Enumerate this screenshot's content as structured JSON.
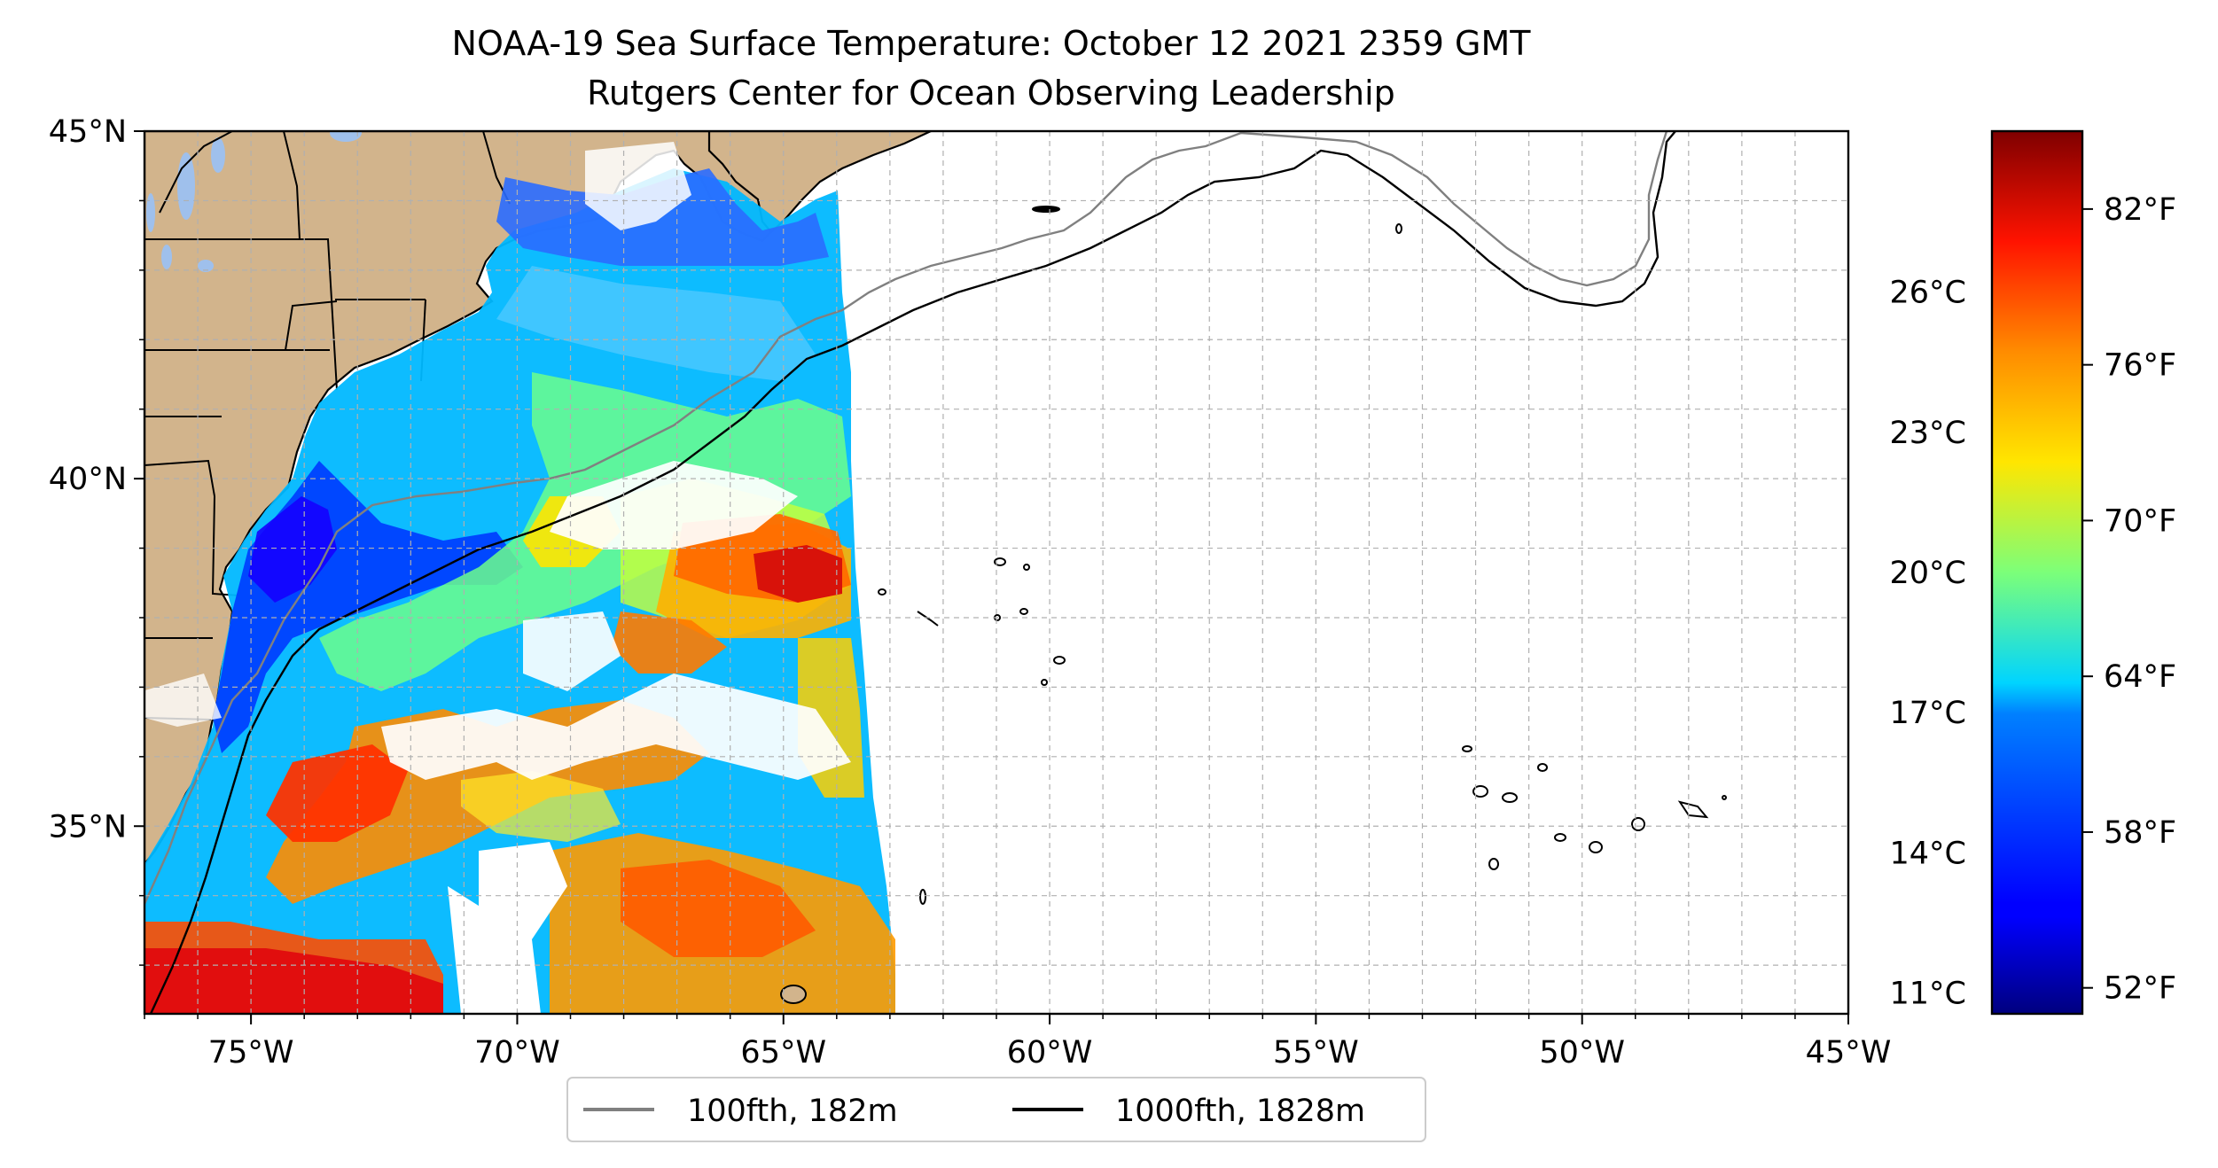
{
  "title": {
    "line1": "NOAA-19 Sea Surface Temperature: October 12 2021 2359 GMT",
    "line2": "Rutgers Center for Ocean Observing Leadership"
  },
  "map": {
    "lon_range": [
      -77,
      -45
    ],
    "lat_range": [
      32.3,
      45
    ],
    "x_ticks": [
      {
        "lon": -75,
        "label": "75°W"
      },
      {
        "lon": -70,
        "label": "70°W"
      },
      {
        "lon": -65,
        "label": "65°W"
      },
      {
        "lon": -60,
        "label": "60°W"
      },
      {
        "lon": -55,
        "label": "55°W"
      },
      {
        "lon": -50,
        "label": "50°W"
      },
      {
        "lon": -45,
        "label": "45°W"
      }
    ],
    "y_ticks": [
      {
        "lat": 45,
        "label": "45°N"
      },
      {
        "lat": 40,
        "label": "40°N"
      },
      {
        "lat": 35,
        "label": "35°N"
      }
    ],
    "grid": true,
    "land_color": "#d2b48c",
    "lake_color": "#9fc0ec",
    "legend": {
      "placement": "bottom-center",
      "entries": [
        {
          "label": "100fth, 182m",
          "color": "#808080"
        },
        {
          "label": "1000fth, 1828m",
          "color": "#000000"
        }
      ]
    }
  },
  "colorbar": {
    "colormap": "jet",
    "range_f": [
      51,
      85
    ],
    "celsius_ticks": [
      {
        "value": 26,
        "label": "26°C"
      },
      {
        "value": 23,
        "label": "23°C"
      },
      {
        "value": 20,
        "label": "20°C"
      },
      {
        "value": 17,
        "label": "17°C"
      },
      {
        "value": 14,
        "label": "14°C"
      },
      {
        "value": 11,
        "label": "11°C"
      }
    ],
    "fahrenheit_ticks": [
      {
        "value": 82,
        "label": "82°F"
      },
      {
        "value": 76,
        "label": "76°F"
      },
      {
        "value": 70,
        "label": "70°F"
      },
      {
        "value": 64,
        "label": "64°F"
      },
      {
        "value": 58,
        "label": "58°F"
      },
      {
        "value": 52,
        "label": "52°F"
      }
    ]
  }
}
